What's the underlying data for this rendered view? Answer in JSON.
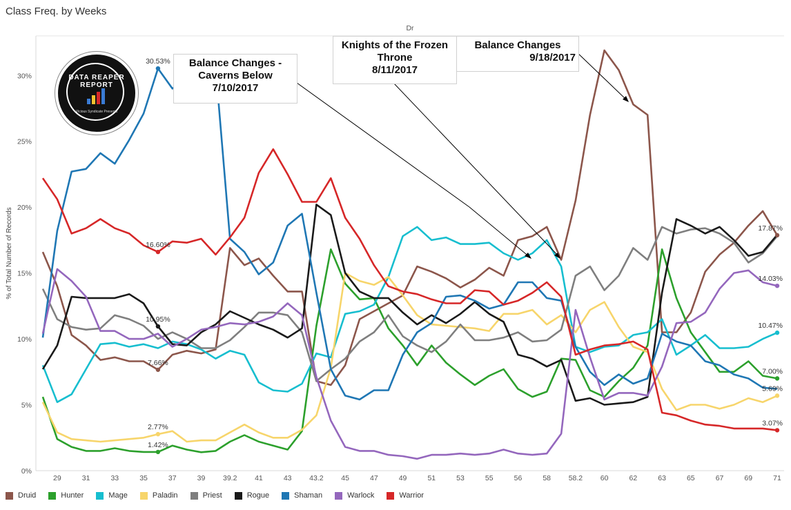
{
  "title": "Class Freq. by Weeks",
  "column_header": "Dr",
  "logo": {
    "text": "DATA REAPER REPORT",
    "sub": "Vicious Syndicate Presents"
  },
  "annotations": [
    {
      "id": "caverns",
      "lines": [
        "Balance Changes -",
        "Caverns Below",
        "7/10/2017"
      ]
    },
    {
      "id": "kft",
      "lines": [
        "Knights of the Frozen",
        "Throne",
        "8/11/2017"
      ]
    },
    {
      "id": "bal918",
      "lines": [
        "Balance Changes",
        "9/18/2017"
      ]
    }
  ],
  "chart_data": {
    "type": "line",
    "title": "Class Freq. by Weeks",
    "ylabel": "% of Total Number of Records",
    "xlabel": "",
    "ylim": [
      0,
      0.33
    ],
    "yticks": [
      "0%",
      "5%",
      "10%",
      "15%",
      "20%",
      "25%",
      "30%"
    ],
    "x_tick_labels": [
      "29",
      "31",
      "33",
      "35",
      "37",
      "39",
      "39.2",
      "41",
      "43",
      "43.2",
      "45",
      "47",
      "49",
      "51",
      "53",
      "55",
      "56",
      "58",
      "58.2",
      "60",
      "62",
      "63",
      "65",
      "67",
      "69",
      "71"
    ],
    "legend_position": "bottom",
    "series": [
      {
        "name": "Druid",
        "color": "#8c564b",
        "values": [
          16.6,
          14.0,
          10.3,
          9.5,
          8.4,
          8.6,
          8.3,
          8.3,
          7.66,
          8.8,
          9.1,
          8.9,
          9.2,
          16.9,
          15.6,
          16.1,
          14.8,
          13.6,
          13.6,
          6.8,
          6.5,
          8.0,
          11.5,
          12.1,
          12.7,
          13.3,
          15.5,
          15.1,
          14.6,
          13.9,
          14.5,
          15.4,
          14.8,
          17.5,
          17.8,
          18.5,
          16.0,
          20.5,
          27.0,
          31.9,
          30.4,
          27.8,
          27.0,
          10.5,
          10.5,
          12.0,
          15.1,
          16.4,
          17.3,
          18.6,
          19.7,
          17.87
        ]
      },
      {
        "name": "Hunter",
        "color": "#2ca02c",
        "values": [
          5.6,
          2.4,
          1.8,
          1.5,
          1.5,
          1.7,
          1.5,
          1.42,
          1.42,
          1.9,
          1.6,
          1.4,
          1.5,
          2.2,
          2.7,
          2.2,
          1.9,
          1.6,
          3.0,
          11.0,
          16.8,
          14.2,
          13.0,
          13.1,
          10.8,
          9.5,
          8.0,
          9.5,
          8.2,
          7.3,
          6.5,
          7.2,
          7.7,
          6.2,
          5.6,
          6.0,
          8.5,
          8.4,
          6.1,
          5.6,
          6.8,
          7.8,
          9.5,
          16.8,
          13.1,
          10.5,
          9.0,
          7.5,
          7.5,
          8.3,
          7.2,
          7.0
        ]
      },
      {
        "name": "Mage",
        "color": "#17becf",
        "values": [
          8.0,
          5.2,
          5.8,
          7.7,
          9.6,
          9.7,
          9.4,
          9.6,
          9.3,
          9.8,
          9.6,
          9.2,
          8.5,
          9.1,
          8.8,
          6.7,
          6.1,
          6.0,
          6.6,
          8.9,
          8.6,
          11.9,
          12.1,
          12.6,
          14.7,
          17.8,
          18.5,
          17.5,
          17.7,
          17.2,
          17.2,
          17.3,
          16.5,
          16.0,
          16.5,
          17.5,
          15.5,
          9.4,
          9.0,
          9.4,
          9.5,
          10.3,
          10.5,
          11.5,
          8.8,
          9.5,
          10.3,
          9.3,
          9.3,
          9.4,
          10.0,
          10.47
        ]
      },
      {
        "name": "Paladin",
        "color": "#f7d56b",
        "values": [
          5.2,
          2.9,
          2.4,
          2.3,
          2.2,
          2.3,
          2.4,
          2.5,
          2.77,
          3.0,
          2.2,
          2.3,
          2.3,
          2.9,
          3.5,
          2.9,
          2.5,
          2.5,
          3.1,
          4.2,
          7.8,
          15.0,
          14.4,
          14.1,
          14.7,
          13.3,
          11.8,
          11.1,
          11.0,
          10.9,
          10.8,
          10.6,
          11.9,
          11.9,
          12.2,
          11.1,
          11.8,
          10.5,
          12.2,
          12.8,
          10.9,
          9.4,
          9.0,
          6.2,
          4.6,
          5.0,
          5.0,
          4.7,
          5.0,
          5.5,
          5.2,
          5.69
        ]
      },
      {
        "name": "Priest",
        "color": "#7f7f7f",
        "values": [
          13.8,
          11.5,
          10.9,
          10.7,
          10.8,
          11.8,
          11.5,
          11.0,
          10.0,
          10.5,
          10.0,
          9.3,
          9.3,
          9.9,
          10.9,
          12.0,
          12.0,
          11.8,
          10.5,
          6.8,
          7.7,
          8.5,
          9.8,
          10.5,
          11.8,
          10.2,
          9.5,
          9.0,
          9.8,
          11.1,
          9.9,
          9.9,
          10.1,
          10.5,
          9.8,
          9.9,
          10.7,
          14.8,
          15.5,
          13.7,
          14.8,
          16.9,
          16.0,
          18.5,
          18.0,
          18.3,
          18.4,
          18.0,
          17.3,
          15.8,
          16.5,
          17.8
        ]
      },
      {
        "name": "Rogue",
        "color": "#1a1a1a",
        "values": [
          7.7,
          9.5,
          13.2,
          13.1,
          13.1,
          13.1,
          13.4,
          12.7,
          10.95,
          9.6,
          9.5,
          10.5,
          11.1,
          12.1,
          11.6,
          11.1,
          10.7,
          10.1,
          10.8,
          20.2,
          19.4,
          15.0,
          13.6,
          13.1,
          13.1,
          12.0,
          11.1,
          11.8,
          11.2,
          11.9,
          12.8,
          11.9,
          11.3,
          8.8,
          8.5,
          7.9,
          8.4,
          5.3,
          5.5,
          5.0,
          5.1,
          5.2,
          5.6,
          13.5,
          19.1,
          18.6,
          18.0,
          18.5,
          17.5,
          16.3,
          16.6,
          17.9
        ]
      },
      {
        "name": "Shaman",
        "color": "#1f77b4",
        "values": [
          10.1,
          18.2,
          22.7,
          22.9,
          24.1,
          23.3,
          25.1,
          27.1,
          30.53,
          29.0,
          29.8,
          28.9,
          30.6,
          17.6,
          16.6,
          14.9,
          15.8,
          18.6,
          19.5,
          13.5,
          7.7,
          5.7,
          5.4,
          6.1,
          6.1,
          8.8,
          10.5,
          11.2,
          13.2,
          13.3,
          12.9,
          12.3,
          12.6,
          14.3,
          14.3,
          13.1,
          12.9,
          9.4,
          7.5,
          6.5,
          7.3,
          6.6,
          7.0,
          10.4,
          9.8,
          9.5,
          8.3,
          8.0,
          7.3,
          7.0,
          6.3,
          6.2
        ]
      },
      {
        "name": "Warlock",
        "color": "#9467bd",
        "values": [
          10.4,
          15.3,
          14.4,
          13.2,
          10.6,
          10.6,
          10.0,
          10.0,
          10.4,
          9.4,
          10.0,
          10.7,
          10.9,
          11.2,
          11.1,
          11.3,
          11.7,
          12.7,
          11.8,
          7.1,
          3.8,
          1.8,
          1.5,
          1.5,
          1.2,
          1.1,
          0.9,
          1.2,
          1.2,
          1.3,
          1.2,
          1.3,
          1.6,
          1.3,
          1.2,
          1.3,
          2.8,
          12.2,
          8.6,
          5.4,
          5.9,
          5.9,
          5.7,
          7.9,
          11.2,
          11.3,
          12.0,
          13.8,
          15.0,
          15.2,
          14.3,
          14.03
        ]
      },
      {
        "name": "Warrior",
        "color": "#d62728",
        "values": [
          22.2,
          20.6,
          18.0,
          18.4,
          19.1,
          18.4,
          18.0,
          17.1,
          16.6,
          17.4,
          17.3,
          17.6,
          16.4,
          17.7,
          19.2,
          22.6,
          24.4,
          22.5,
          20.4,
          20.4,
          22.2,
          19.2,
          17.6,
          15.6,
          14.0,
          13.6,
          13.4,
          13.0,
          12.7,
          12.7,
          13.7,
          13.6,
          12.6,
          12.9,
          13.5,
          14.3,
          13.2,
          8.8,
          9.2,
          9.5,
          9.6,
          9.8,
          9.2,
          4.4,
          4.2,
          3.8,
          3.5,
          3.4,
          3.2,
          3.2,
          3.2,
          3.07
        ]
      }
    ],
    "point_labels": [
      {
        "series": "Shaman",
        "index": 8,
        "text": "30.53%"
      },
      {
        "series": "Warrior",
        "index": 8,
        "text": "16.60%"
      },
      {
        "series": "Rogue",
        "index": 8,
        "text": "10.95%"
      },
      {
        "series": "Druid",
        "index": 8,
        "text": "7.66%"
      },
      {
        "series": "Paladin",
        "index": 8,
        "text": "2.77%"
      },
      {
        "series": "Hunter",
        "index": 8,
        "text": "1.42%"
      },
      {
        "series": "Druid",
        "index": 51,
        "text": "17.87%"
      },
      {
        "series": "Warlock",
        "index": 51,
        "text": "14.03%"
      },
      {
        "series": "Mage",
        "index": 51,
        "text": "10.47%"
      },
      {
        "series": "Hunter",
        "index": 51,
        "text": "7.00%"
      },
      {
        "series": "Paladin",
        "index": 51,
        "text": "5.69%"
      },
      {
        "series": "Warrior",
        "index": 51,
        "text": "3.07%"
      }
    ]
  }
}
